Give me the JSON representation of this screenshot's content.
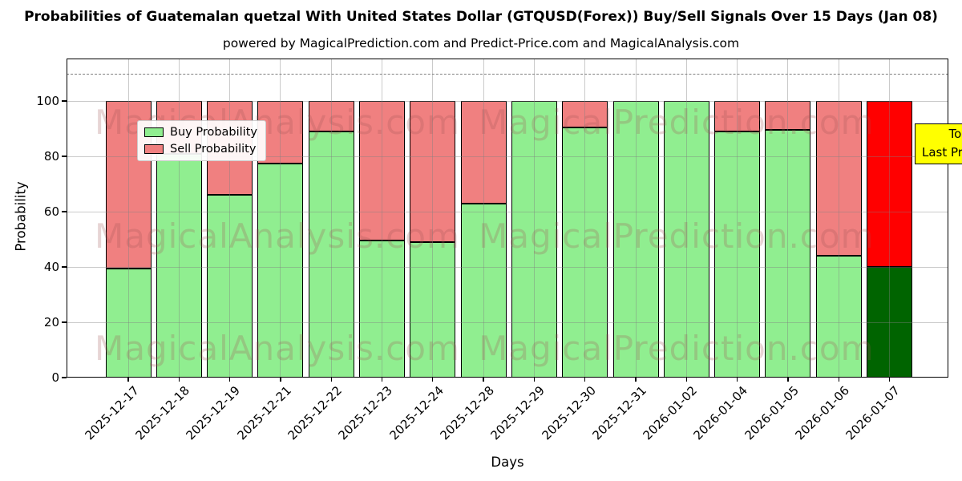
{
  "chart_data": {
    "type": "bar",
    "stacked": true,
    "title": "Probabilities of Guatemalan quetzal With United States Dollar (GTQUSD(Forex)) Buy/Sell Signals Over 15 Days (Jan 08)",
    "subtitle": "powered by MagicalPrediction.com and Predict-Price.com and MagicalAnalysis.com",
    "xlabel": "Days",
    "ylabel": "Probability",
    "categories": [
      "2025-12-17",
      "2025-12-18",
      "2025-12-19",
      "2025-12-21",
      "2025-12-22",
      "2025-12-23",
      "2025-12-24",
      "2025-12-28",
      "2025-12-29",
      "2025-12-30",
      "2025-12-31",
      "2026-01-02",
      "2026-01-04",
      "2026-01-05",
      "2026-01-06",
      "2026-01-07"
    ],
    "series": [
      {
        "name": "Buy Probability",
        "color": "#90ee90",
        "values": [
          39.5,
          81,
          66,
          77.5,
          89,
          49.5,
          49,
          63,
          100,
          90.5,
          100,
          100,
          89,
          89.5,
          44,
          40
        ]
      },
      {
        "name": "Sell Probability",
        "color": "#f08080",
        "values": [
          60.5,
          19,
          34,
          22.5,
          11,
          50.5,
          51,
          37,
          0,
          9.5,
          0,
          0,
          11,
          10.5,
          56,
          60
        ]
      }
    ],
    "today_bar": {
      "index": 15,
      "buy_color": "#006400",
      "sell_color": "#ff0000"
    },
    "ylim": [
      0,
      115.4
    ],
    "yticks": [
      0,
      20,
      40,
      60,
      80,
      100
    ],
    "dashed_line_y": 110,
    "grid": true,
    "legend_position": "upper left",
    "annotation": {
      "lines": [
        "Today",
        "Last Prediction"
      ],
      "bg_color": "#ffff00"
    },
    "watermarks": {
      "left": "MagicalAnalysis.com",
      "right": "MagicalPrediction.com"
    }
  }
}
